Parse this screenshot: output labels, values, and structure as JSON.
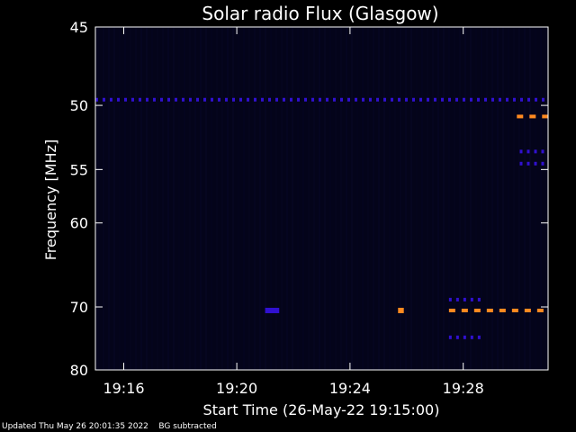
{
  "chart_data": {
    "type": "heatmap",
    "title": "Solar radio Flux (Glasgow)",
    "xlabel": "Start Time (26-May-22 19:15:00)",
    "ylabel": "Frequency [MHz]",
    "x_range_minutes": [
      19.25,
      19.5167
    ],
    "x_ticks": [
      "19:16",
      "19:20",
      "19:24",
      "19:28"
    ],
    "x_tick_values": [
      19.2667,
      19.3333,
      19.4,
      19.4667
    ],
    "y_ticks": [
      45,
      50,
      55,
      60,
      70,
      80
    ],
    "ylim": [
      45,
      80
    ],
    "y_scale": "reciprocal",
    "colors": {
      "background": "#000000",
      "plot_bg": "#04041a",
      "low": "#3010d0",
      "high": "#ff8a20",
      "peak": "#ffd070"
    },
    "features": [
      {
        "desc": "50 MHz persistent band",
        "freq": 49.6,
        "t_start": 19.25,
        "t_end": 19.5167,
        "level": "low",
        "dashed": true
      },
      {
        "desc": "70.5 MHz burst",
        "freq": 70.5,
        "t_start": 19.35,
        "t_end": 19.3583,
        "level": "low",
        "dashed": false
      },
      {
        "desc": "70.5 MHz burst b",
        "freq": 70.5,
        "t_start": 19.4283,
        "t_end": 19.4317,
        "level": "high",
        "dashed": false
      },
      {
        "desc": "70.5 MHz pulses",
        "freq": 70.5,
        "t_start": 19.4583,
        "t_end": 19.5167,
        "level": "high",
        "dashed": true
      },
      {
        "desc": "51 MHz pulses",
        "freq": 50.8,
        "t_start": 19.4983,
        "t_end": 19.5167,
        "level": "high",
        "dashed": true
      },
      {
        "desc": "69 MHz pulses",
        "freq": 69.0,
        "t_start": 19.4583,
        "t_end": 19.4783,
        "level": "low",
        "dashed": true
      },
      {
        "desc": "74.5 MHz pulses",
        "freq": 74.5,
        "t_start": 19.4583,
        "t_end": 19.4783,
        "level": "low",
        "dashed": true
      },
      {
        "desc": "54.5 MHz pulses",
        "freq": 54.5,
        "t_start": 19.5,
        "t_end": 19.5167,
        "level": "low",
        "dashed": true
      },
      {
        "desc": "53.5 MHz faint",
        "freq": 53.5,
        "t_start": 19.5,
        "t_end": 19.5167,
        "level": "low",
        "dashed": true
      }
    ]
  },
  "footer": {
    "updated": "Updated Thu May 26 20:01:35 2022",
    "note": "BG subtracted"
  }
}
